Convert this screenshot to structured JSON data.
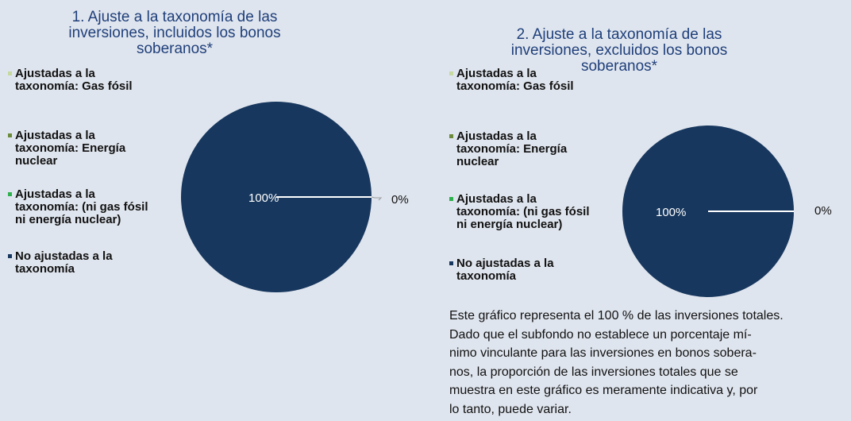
{
  "chart_data": [
    {
      "type": "pie",
      "title": "1. Ajuste a la taxonomía de las inversiones, incluidos los bonos soberanos*",
      "categories": [
        "Ajustadas a la taxonomía: Gas fósil",
        "Ajustadas a la taxonomía: Energía nuclear",
        "Ajustadas a la taxonomía: (ni gas fósil ni energía nuclear)",
        "No ajustadas a la taxonomía"
      ],
      "values": [
        0,
        0,
        0,
        100
      ],
      "value_labels": [
        "0%",
        null,
        null,
        "100%"
      ],
      "colors": [
        "#c6d9a0",
        "#6b8a3a",
        "#2eb04e",
        "#17375e"
      ]
    },
    {
      "type": "pie",
      "title": "2. Ajuste a la taxonomía de las inversiones, excluidos los bonos soberanos*",
      "categories": [
        "Ajustadas a la taxonomía: Gas fósil",
        "Ajustadas a la taxonomía: Energía nuclear",
        "Ajustadas a la taxonomía: (ni gas fósil ni energía nuclear)",
        "No ajustadas a la taxonomía"
      ],
      "values": [
        0,
        0,
        0,
        100
      ],
      "value_labels": [
        "0%",
        null,
        null,
        "100%"
      ],
      "colors": [
        "#c6d9a0",
        "#6b8a3a",
        "#2eb04e",
        "#17375e"
      ],
      "note": [
        "Este gráfico representa el 100 % de las inversiones totales.",
        "Dado que el subfondo no establece un porcentaje mí-",
        "nimo vinculante para las inversiones en bonos sobera-",
        "nos, la proporción de las inversiones totales que se",
        "muestra en este gráfico es meramente indicativa y, por",
        "lo tanto, puede variar."
      ]
    }
  ]
}
